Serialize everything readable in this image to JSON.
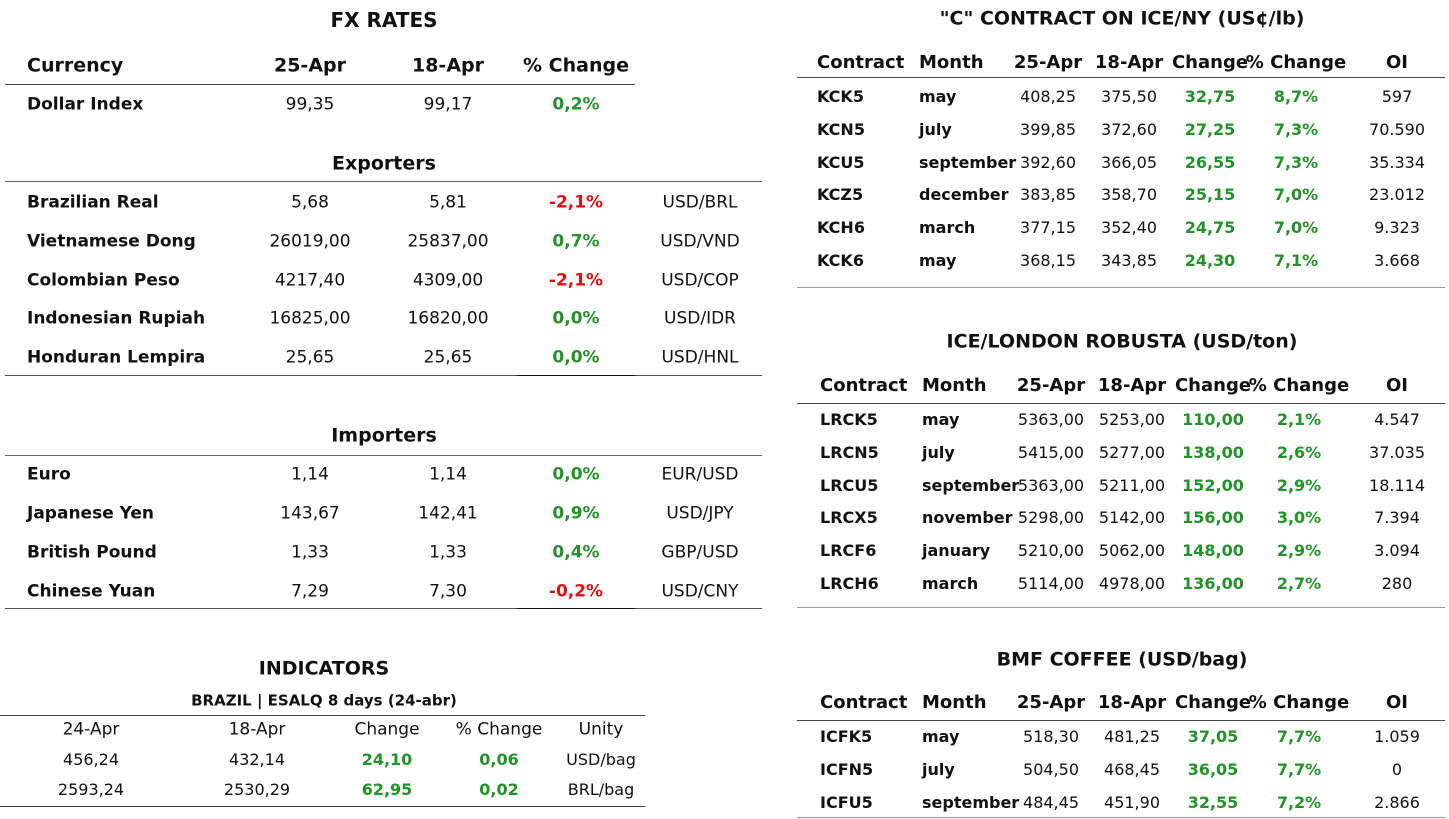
{
  "fx": {
    "title": "FX RATES",
    "header": [
      "Currency",
      "25-Apr",
      "18-Apr",
      "% Change"
    ],
    "top": [
      [
        "Dollar Index",
        "99,35",
        "99,17",
        "0,2%"
      ]
    ],
    "exporters": {
      "title": "Exporters",
      "rows": [
        [
          "Brazilian Real",
          "5,68",
          "5,81",
          "-2,1%",
          "USD/BRL"
        ],
        [
          "Vietnamese Dong",
          "26019,00",
          "25837,00",
          "0,7%",
          "USD/VND"
        ],
        [
          "Colombian Peso",
          "4217,40",
          "4309,00",
          "-2,1%",
          "USD/COP"
        ],
        [
          "Indonesian Rupiah",
          "16825,00",
          "16820,00",
          "0,0%",
          "USD/IDR"
        ],
        [
          "Honduran Lempira",
          "25,65",
          "25,65",
          "0,0%",
          "USD/HNL"
        ]
      ]
    },
    "importers": {
      "title": "Importers",
      "rows": [
        [
          "Euro",
          "1,14",
          "1,14",
          "0,0%",
          "EUR/USD"
        ],
        [
          "Japanese Yen",
          "143,67",
          "142,41",
          "0,9%",
          "USD/JPY"
        ],
        [
          "British Pound",
          "1,33",
          "1,33",
          "0,4%",
          "GBP/USD"
        ],
        [
          "Chinese Yuan",
          "7,29",
          "7,30",
          "-0,2%",
          "USD/CNY"
        ]
      ]
    }
  },
  "indicators": {
    "title": "INDICATORS",
    "subtitle": "BRAZIL | ESALQ 8 days (24-abr)",
    "header": [
      "24-Apr",
      "18-Apr",
      "Change",
      "% Change",
      "Unity"
    ],
    "rows": [
      [
        "456,24",
        "432,14",
        "24,10",
        "0,06",
        "USD/bag"
      ],
      [
        "2593,24",
        "2530,29",
        "62,95",
        "0,02",
        "BRL/bag"
      ]
    ]
  },
  "ice_ny": {
    "title": "\"C\" CONTRACT ON ICE/NY (US¢/lb)",
    "header": [
      "Contract",
      "Month",
      "25-Apr",
      "18-Apr",
      "Change",
      "% Change",
      "OI"
    ],
    "rows": [
      [
        "KCK5",
        "may",
        "408,25",
        "375,50",
        "32,75",
        "8,7%",
        "597"
      ],
      [
        "KCN5",
        "july",
        "399,85",
        "372,60",
        "27,25",
        "7,3%",
        "70.590"
      ],
      [
        "KCU5",
        "september",
        "392,60",
        "366,05",
        "26,55",
        "7,3%",
        "35.334"
      ],
      [
        "KCZ5",
        "december",
        "383,85",
        "358,70",
        "25,15",
        "7,0%",
        "23.012"
      ],
      [
        "KCH6",
        "march",
        "377,15",
        "352,40",
        "24,75",
        "7,0%",
        "9.323"
      ],
      [
        "KCK6",
        "may",
        "368,15",
        "343,85",
        "24,30",
        "7,1%",
        "3.668"
      ]
    ]
  },
  "ice_london": {
    "title": "ICE/LONDON ROBUSTA (USD/ton)",
    "header": [
      "Contract",
      "Month",
      "25-Apr",
      "18-Apr",
      "Change",
      "% Change",
      "OI"
    ],
    "rows": [
      [
        "LRCK5",
        "may",
        "5363,00",
        "5253,00",
        "110,00",
        "2,1%",
        "4.547"
      ],
      [
        "LRCN5",
        "july",
        "5415,00",
        "5277,00",
        "138,00",
        "2,6%",
        "37.035"
      ],
      [
        "LRCU5",
        "september",
        "5363,00",
        "5211,00",
        "152,00",
        "2,9%",
        "18.114"
      ],
      [
        "LRCX5",
        "november",
        "5298,00",
        "5142,00",
        "156,00",
        "3,0%",
        "7.394"
      ],
      [
        "LRCF6",
        "january",
        "5210,00",
        "5062,00",
        "148,00",
        "2,9%",
        "3.094"
      ],
      [
        "LRCH6",
        "march",
        "5114,00",
        "4978,00",
        "136,00",
        "2,7%",
        "280"
      ]
    ]
  },
  "bmf": {
    "title": "BMF COFFEE (USD/bag)",
    "header": [
      "Contract",
      "Month",
      "25-Apr",
      "18-Apr",
      "Change",
      "% Change",
      "OI"
    ],
    "rows": [
      [
        "ICFK5",
        "may",
        "518,30",
        "481,25",
        "37,05",
        "7,7%",
        "1.059"
      ],
      [
        "ICFN5",
        "july",
        "504,50",
        "468,45",
        "36,05",
        "7,7%",
        "0"
      ],
      [
        "ICFU5",
        "september",
        "484,45",
        "451,90",
        "32,55",
        "7,2%",
        "2.866"
      ]
    ]
  }
}
